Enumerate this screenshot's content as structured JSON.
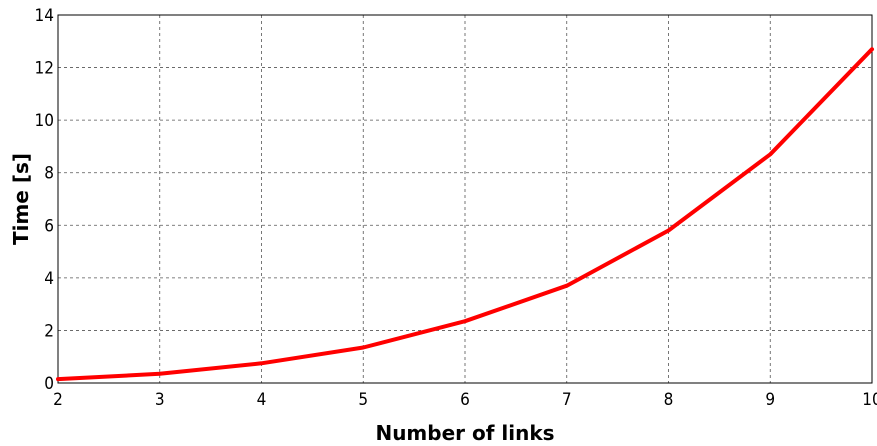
{
  "chart_data": {
    "type": "line",
    "title": "",
    "xlabel": "Number of links",
    "ylabel": "Time [s]",
    "xlim": [
      2,
      10
    ],
    "ylim": [
      0,
      14
    ],
    "xticks": [
      "2",
      "3",
      "4",
      "5",
      "6",
      "7",
      "8",
      "9",
      "10"
    ],
    "yticks": [
      "0",
      "2",
      "4",
      "6",
      "8",
      "10",
      "12",
      "14"
    ],
    "grid": true,
    "series": [
      {
        "color": "#ff0000",
        "x": [
          2,
          3,
          4,
          5,
          6,
          7,
          8,
          9,
          10
        ],
        "y": [
          0.15,
          0.35,
          0.75,
          1.35,
          2.35,
          3.7,
          5.8,
          8.7,
          12.7
        ]
      }
    ]
  }
}
